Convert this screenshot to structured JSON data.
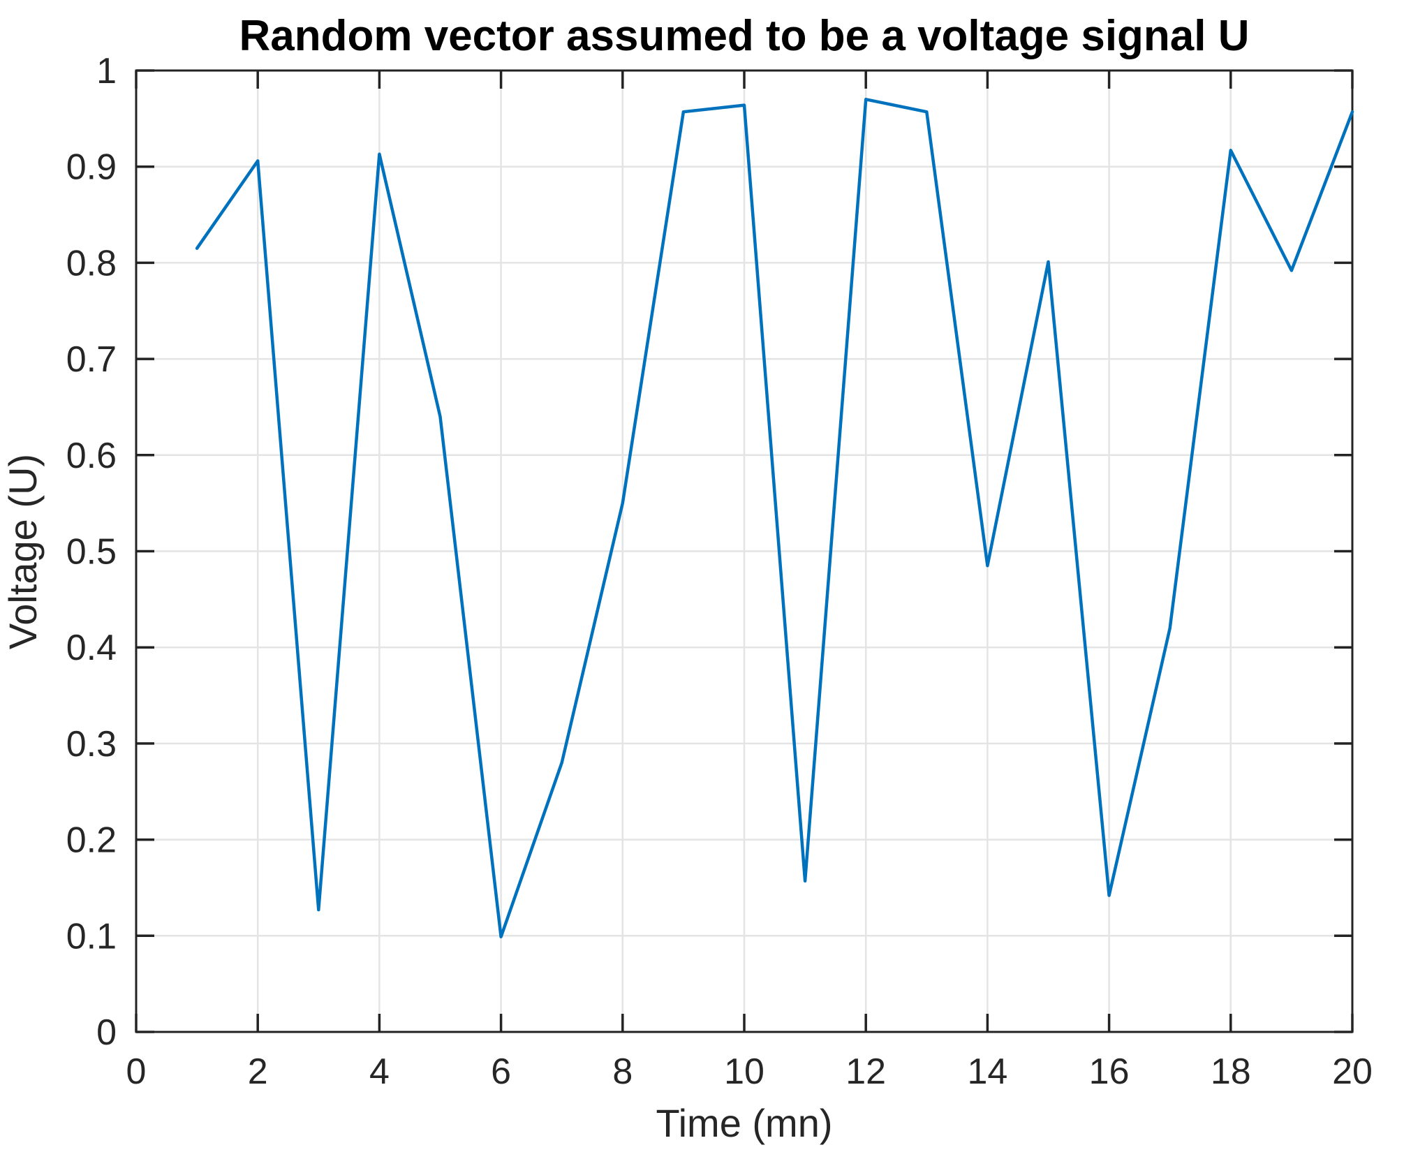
{
  "chart_data": {
    "type": "line",
    "title": "Random vector assumed to be a voltage signal U",
    "xlabel": "Time (mn)",
    "ylabel": "Voltage (U)",
    "x": [
      1,
      2,
      3,
      4,
      5,
      6,
      7,
      8,
      9,
      10,
      11,
      12,
      13,
      14,
      15,
      16,
      17,
      18,
      19,
      20
    ],
    "y": [
      0.815,
      0.906,
      0.127,
      0.913,
      0.64,
      0.099,
      0.28,
      0.55,
      0.957,
      0.964,
      0.157,
      0.97,
      0.957,
      0.485,
      0.801,
      0.142,
      0.42,
      0.917,
      0.792,
      0.957
    ],
    "xlim": [
      0,
      20
    ],
    "ylim": [
      0,
      1
    ],
    "xticks": [
      0,
      2,
      4,
      6,
      8,
      10,
      12,
      14,
      16,
      18,
      20
    ],
    "yticks": [
      0,
      0.1,
      0.2,
      0.3,
      0.4,
      0.5,
      0.6,
      0.7,
      0.8,
      0.9,
      1
    ],
    "xtick_labels": [
      "0",
      "2",
      "4",
      "6",
      "8",
      "10",
      "12",
      "14",
      "16",
      "18",
      "20"
    ],
    "ytick_labels": [
      "0",
      "0.1",
      "0.2",
      "0.3",
      "0.4",
      "0.5",
      "0.6",
      "0.7",
      "0.8",
      "0.9",
      "1"
    ],
    "grid": true,
    "legend": null,
    "line_color": "#0072BD",
    "grid_color": "#e4e4e4",
    "axis_color": "#232323",
    "box": "on",
    "tick_direction": "in"
  }
}
